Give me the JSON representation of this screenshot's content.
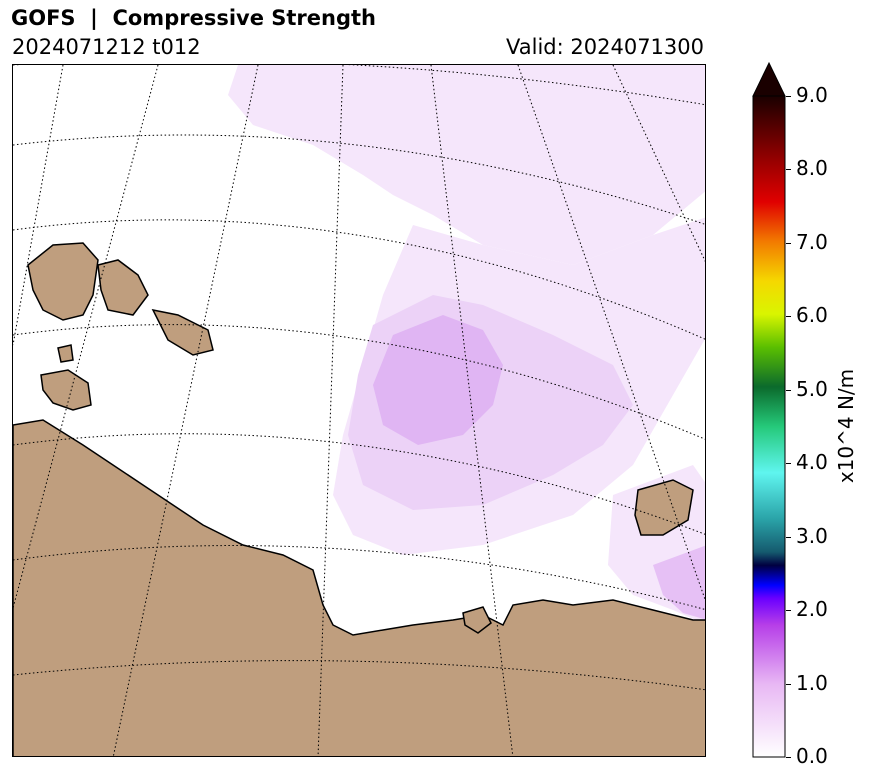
{
  "header": {
    "title": "GOFS  |  Compressive Strength",
    "init_label": "2024071212 t012",
    "valid_label": "Valid: 2024071300"
  },
  "colorbar": {
    "label": "x10^4 N/m",
    "min": 0.0,
    "max": 9.0,
    "extend": "max",
    "ticks": [
      "0.0",
      "1.0",
      "2.0",
      "3.0",
      "4.0",
      "5.0",
      "6.0",
      "7.0",
      "8.0",
      "9.0"
    ]
  },
  "colors": {
    "land": "#bf9e7e",
    "ocean": "#ffffff",
    "ice_light": "#f5e6fb",
    "ice_mid": "#ecd2f7",
    "ice_strong": "#e0b5f3",
    "coastline": "#000000"
  },
  "map": {
    "projection": "polar stereographic",
    "gridlines": "dotted",
    "field": "sea ice compressive strength"
  }
}
